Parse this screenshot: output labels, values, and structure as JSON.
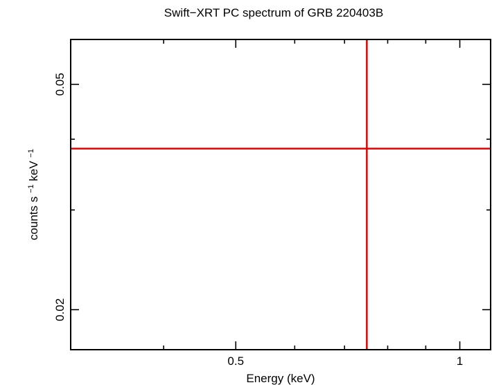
{
  "colors": {
    "series": "#e00000",
    "axes": "#000000",
    "background": "#ffffff"
  },
  "chart_data": {
    "type": "scatter",
    "title": "Swift−XRT PC spectrum of GRB 220403B",
    "xlabel": "Energy (keV)",
    "ylabel_main": "counts s",
    "ylabel_sup1": "−1",
    "ylabel_mid": " keV",
    "ylabel_sup2": "−1",
    "x_scale": "log",
    "y_scale": "log",
    "xlim": [
      0.3,
      1.1
    ],
    "ylim": [
      0.017,
      0.06
    ],
    "x_ticks_major": [
      {
        "value": 0.5,
        "label": "0.5"
      },
      {
        "value": 1,
        "label": "1"
      }
    ],
    "x_ticks_minor": [
      0.3,
      0.4,
      0.6,
      0.7,
      0.8,
      0.9
    ],
    "y_ticks_major": [
      {
        "value": 0.02,
        "label": "0.02"
      },
      {
        "value": 0.05,
        "label": "0.05"
      }
    ],
    "y_ticks_minor": [
      0.03,
      0.04
    ],
    "series": [
      {
        "points": [
          {
            "x": 0.75,
            "x_err": [
              0.3,
              1.1
            ],
            "y": 0.0385,
            "y_err": [
              0.017,
              0.06
            ]
          }
        ]
      }
    ],
    "grid": false,
    "legend": "none"
  }
}
